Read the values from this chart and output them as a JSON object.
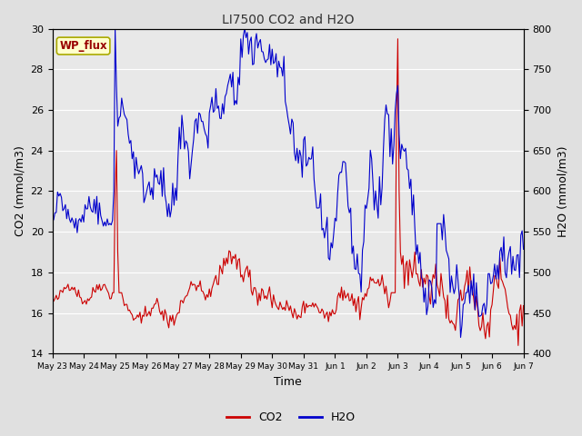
{
  "title": "LI7500 CO2 and H2O",
  "xlabel": "Time",
  "ylabel_left": "CO2 (mmol/m3)",
  "ylabel_right": "H2O (mmol/m3)",
  "ylim_left": [
    14,
    30
  ],
  "ylim_right": [
    400,
    800
  ],
  "yticks_left": [
    14,
    16,
    18,
    20,
    22,
    24,
    26,
    28,
    30
  ],
  "yticks_right": [
    400,
    450,
    500,
    550,
    600,
    650,
    700,
    750,
    800
  ],
  "xtick_labels": [
    "May 23",
    "May 24",
    "May 25",
    "May 26",
    "May 27",
    "May 28",
    "May 29",
    "May 30",
    "May 31",
    "Jun 1",
    "Jun 2",
    "Jun 3",
    "Jun 4",
    "Jun 5",
    "Jun 6",
    "Jun 7"
  ],
  "co2_color": "#cc0000",
  "h2o_color": "#0000cc",
  "fig_bg_color": "#e0e0e0",
  "plot_bg_color": "#e8e8e8",
  "grid_color": "#ffffff",
  "site_label": "WP_flux",
  "legend_co2": "CO2",
  "legend_h2o": "H2O",
  "title_fontsize": 10,
  "label_fontsize": 9,
  "tick_fontsize": 8
}
